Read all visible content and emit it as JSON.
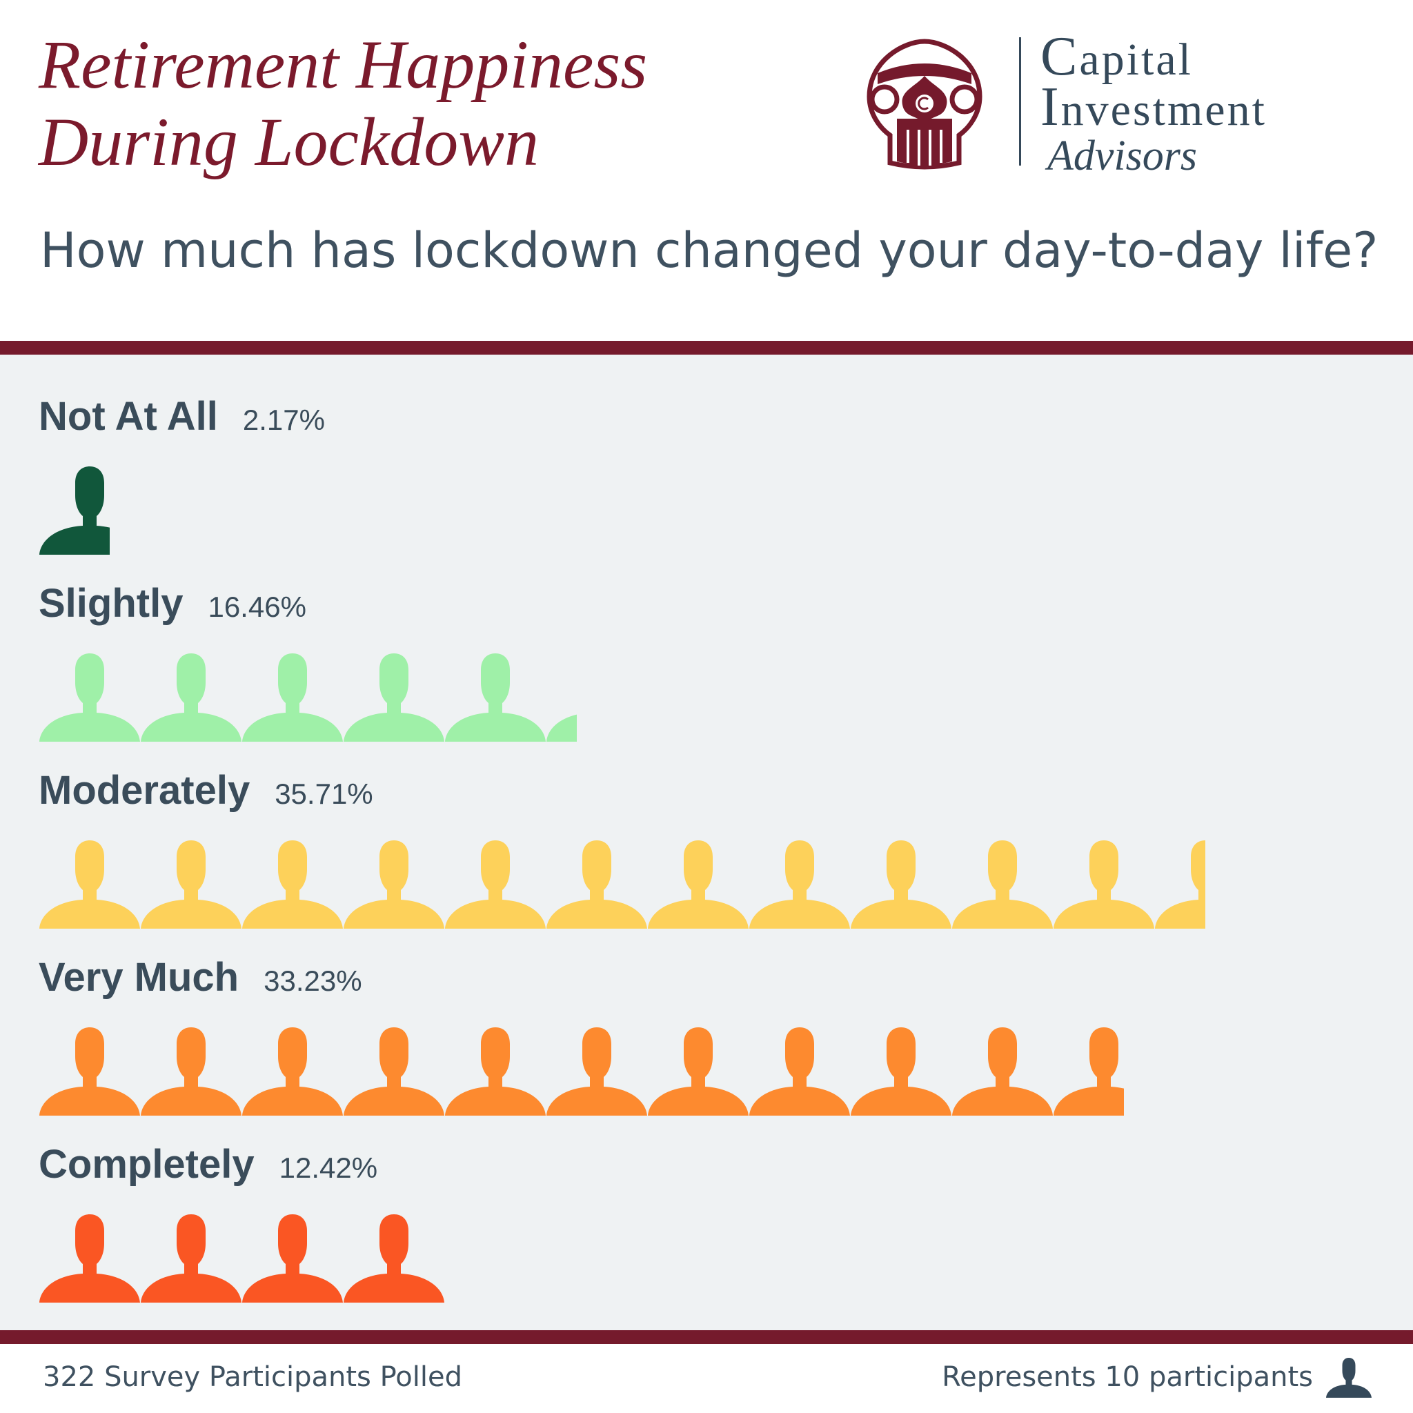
{
  "header": {
    "title_line1": "Retirement Happiness",
    "title_line2": "During Lockdown",
    "subtitle": "How much has lockdown changed your day-to-day life?"
  },
  "brand": {
    "name_line1": "Capital",
    "name_line2": "Investment",
    "name_line3": "Advisors",
    "primary_color": "#751a2c",
    "text_color": "#35495a"
  },
  "chart_data": {
    "type": "pictograph",
    "title": "Retirement Happiness During Lockdown",
    "subtitle": "How much has lockdown changed your day-to-day life?",
    "unit_label": "Represents 10 participants",
    "participants_per_icon": 10,
    "total_participants": 322,
    "categories": [
      "Not At All",
      "Slightly",
      "Moderately",
      "Very Much",
      "Completely"
    ],
    "values": [
      2.17,
      16.46,
      35.71,
      33.23,
      12.42
    ],
    "value_labels": [
      "2.17%",
      "16.46%",
      "35.71%",
      "33.23%",
      "12.42%"
    ],
    "colors": [
      "#11573b",
      "#9ff0a8",
      "#fdd15a",
      "#fd8a2f",
      "#fa5623"
    ]
  },
  "footer": {
    "participants_text": "322 Survey Participants Polled",
    "legend_text": "Represents 10 participants",
    "legend_icon": "person-icon",
    "legend_color": "#35495a"
  }
}
